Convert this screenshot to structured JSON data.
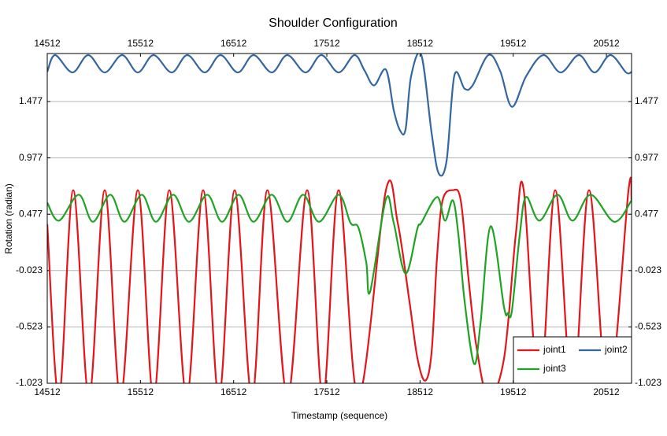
{
  "chart_data": {
    "type": "line",
    "title": "Shoulder Configuration",
    "xlabel": "Timestamp (sequence)",
    "ylabel": "Rotation (radian)",
    "xlim": [
      14512,
      20782
    ],
    "xticks": [
      14512,
      15512,
      16512,
      17512,
      18512,
      19512,
      20512
    ],
    "ylim": [
      -1.023,
      1.903
    ],
    "yticks": [
      -1.023,
      -0.523,
      -0.023,
      0.477,
      0.977,
      1.477
    ],
    "grid": true,
    "legend": "lower right",
    "series": [
      {
        "name": "joint1",
        "color": "#e3161b",
        "x": [
          14512,
          14639,
          14791,
          14960,
          15129,
          15298,
          15484,
          15653,
          15822,
          16008,
          16185,
          16354,
          16523,
          16709,
          16875,
          17090,
          17301,
          17470,
          17639,
          17850,
          18146,
          18273,
          18399,
          18484,
          18568,
          18636,
          18695,
          18754,
          18864,
          18949,
          19033,
          19118,
          19245,
          19414,
          19540,
          19625,
          19794,
          19963,
          20149,
          20326,
          20529,
          20749,
          20782
        ],
        "values": [
          0.39,
          -1.15,
          0.69,
          -1.15,
          0.69,
          -1.15,
          0.69,
          -1.15,
          0.69,
          -1.15,
          0.69,
          -1.15,
          0.69,
          -1.15,
          0.69,
          -1.15,
          0.69,
          -1.15,
          0.69,
          -1.15,
          0.69,
          0.4,
          -0.3,
          -0.8,
          -1.0,
          -0.75,
          0.1,
          0.6,
          0.69,
          0.6,
          -0.1,
          -0.7,
          -1.15,
          -0.8,
          0.3,
          0.69,
          -1.15,
          0.69,
          -1.15,
          0.69,
          -1.15,
          0.69,
          0.6
        ]
      },
      {
        "name": "joint2",
        "color": "#3466a0",
        "x": [
          14512,
          14597,
          14782,
          14951,
          15129,
          15315,
          15484,
          15653,
          15847,
          16015,
          16202,
          16371,
          16557,
          16726,
          16921,
          17088,
          17284,
          17453,
          17639,
          17808,
          17918,
          18019,
          18146,
          18230,
          18298,
          18357,
          18416,
          18526,
          18636,
          18712,
          18797,
          18881,
          18991,
          19076,
          19245,
          19371,
          19498,
          19650,
          19836,
          20022,
          20217,
          20385,
          20554,
          20723,
          20782
        ],
        "values": [
          1.74,
          1.889,
          1.735,
          1.889,
          1.735,
          1.889,
          1.735,
          1.889,
          1.735,
          1.889,
          1.735,
          1.889,
          1.735,
          1.889,
          1.735,
          1.889,
          1.735,
          1.889,
          1.735,
          1.889,
          1.75,
          1.62,
          1.76,
          1.4,
          1.22,
          1.23,
          1.7,
          1.889,
          1.2,
          0.84,
          0.95,
          1.71,
          1.59,
          1.62,
          1.889,
          1.75,
          1.43,
          1.7,
          1.889,
          1.735,
          1.889,
          1.735,
          1.889,
          1.735,
          1.74
        ]
      },
      {
        "name": "joint3",
        "color": "#1fa324",
        "x": [
          14512,
          14639,
          14850,
          15002,
          15188,
          15340,
          15526,
          15678,
          15864,
          16033,
          16228,
          16388,
          16566,
          16726,
          16920,
          17089,
          17258,
          17428,
          17639,
          17766,
          17850,
          17935,
          17977,
          18146,
          18230,
          18357,
          18484,
          18526,
          18695,
          18780,
          18864,
          18923,
          18991,
          19092,
          19160,
          19270,
          19414,
          19456,
          19498,
          19583,
          19650,
          19794,
          19988,
          20149,
          20343,
          20597,
          20782
        ],
        "values": [
          0.58,
          0.42,
          0.65,
          0.41,
          0.65,
          0.41,
          0.65,
          0.41,
          0.65,
          0.41,
          0.65,
          0.41,
          0.65,
          0.41,
          0.65,
          0.41,
          0.65,
          0.41,
          0.65,
          0.4,
          0.36,
          0.05,
          -0.21,
          0.61,
          0.4,
          -0.05,
          0.35,
          0.4,
          0.63,
          0.42,
          0.6,
          0.3,
          -0.3,
          -0.85,
          -0.5,
          0.37,
          -0.35,
          -0.4,
          -0.38,
          0.3,
          0.63,
          0.42,
          0.65,
          0.42,
          0.65,
          0.41,
          0.6
        ]
      }
    ]
  }
}
